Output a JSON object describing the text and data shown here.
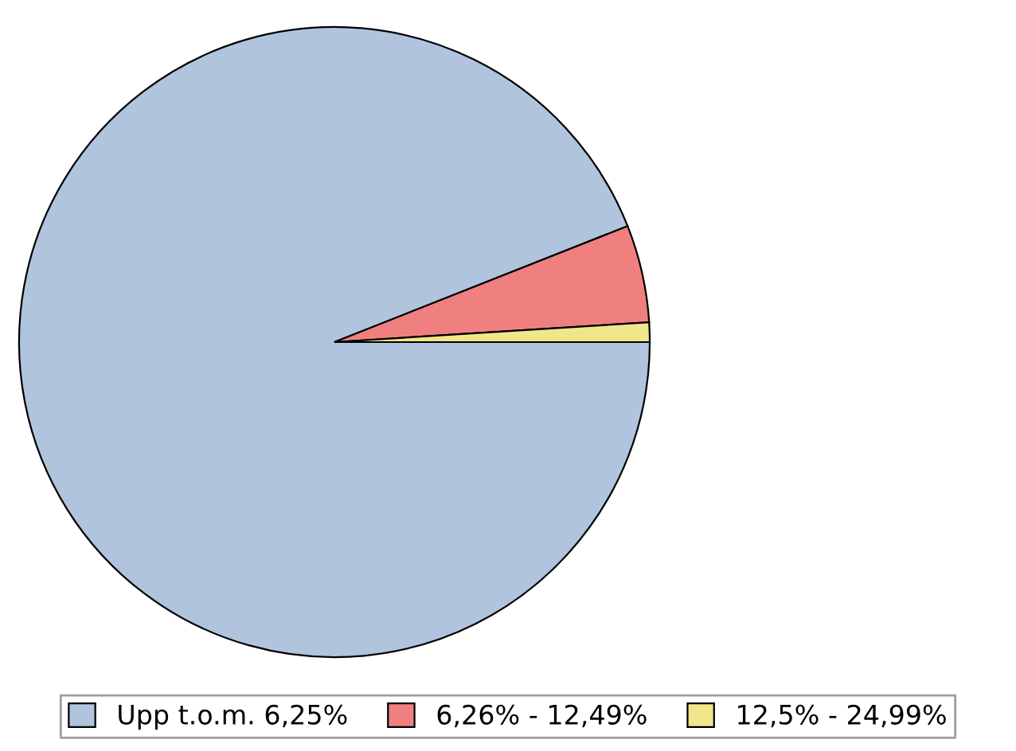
{
  "chart_data": {
    "type": "pie",
    "categories": [
      "Upp t.o.m. 6,25%",
      "6,26% - 12,49%",
      "12,5% - 24,99%"
    ],
    "values": [
      94.0,
      5.0,
      1.0
    ],
    "colors": [
      "#b0c4de",
      "#f08080",
      "#f0e68c"
    ],
    "legend": "bottom"
  }
}
